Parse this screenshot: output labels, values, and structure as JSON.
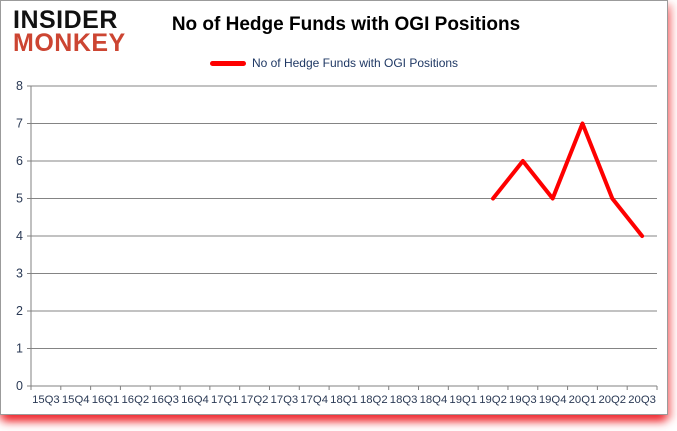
{
  "logo": {
    "line1": "INSIDER",
    "line2": "MONKEY"
  },
  "header": {
    "title": "No of Hedge Funds with OGI Positions"
  },
  "legend": {
    "label": "No of Hedge Funds with OGI Positions"
  },
  "colors": {
    "series_line": "#fe0000",
    "gridline": "#848484",
    "axis": "#808080",
    "tick_text": "#2b3a55",
    "legend_text": "#1f3864",
    "logo_monkey": "#cc4532",
    "shadow_glow": "#ed1c24"
  },
  "chart_data": {
    "type": "line",
    "title": "No of Hedge Funds with OGI Positions",
    "categories": [
      "15Q3",
      "15Q4",
      "16Q1",
      "16Q2",
      "16Q3",
      "16Q4",
      "17Q1",
      "17Q2",
      "17Q3",
      "17Q4",
      "18Q1",
      "18Q2",
      "18Q3",
      "18Q4",
      "19Q1",
      "19Q2",
      "19Q3",
      "19Q4",
      "20Q1",
      "20Q2",
      "20Q3"
    ],
    "series": [
      {
        "name": "No of Hedge Funds with OGI Positions",
        "values": [
          null,
          null,
          null,
          null,
          null,
          null,
          null,
          null,
          null,
          null,
          null,
          null,
          null,
          null,
          null,
          5,
          6,
          5,
          7,
          5,
          4
        ]
      }
    ],
    "xlabel": "",
    "ylabel": "",
    "ylim": [
      0,
      8
    ],
    "yticks": [
      0,
      1,
      2,
      3,
      4,
      5,
      6,
      7,
      8
    ],
    "grid": true,
    "legend_position": "top-center"
  }
}
